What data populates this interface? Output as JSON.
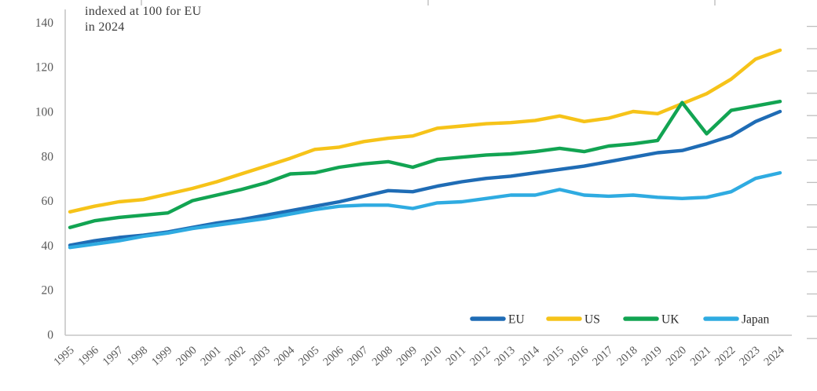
{
  "subtitle": {
    "line1": "indexed at 100 for EU",
    "line2": "in 2024"
  },
  "colors": {
    "background": "#ffffff",
    "axis_line": "#c6c6c6",
    "tick_dash": "#bfbfbf",
    "tick_label_text": "#595959",
    "subtitle_text": "#3b3b3b",
    "legend_text": "#2b2b2b"
  },
  "chart_data": {
    "type": "line",
    "title": "indexed at 100 for EU in 2024",
    "xlabel": "",
    "ylabel": "",
    "grid": false,
    "ylim": [
      0,
      140
    ],
    "yticks": [
      0,
      20,
      40,
      60,
      80,
      100,
      120,
      140
    ],
    "legend_position": "bottom-right-inside",
    "legend": [
      "EU",
      "US",
      "UK",
      "Japan"
    ],
    "x": [
      1995,
      1996,
      1997,
      1998,
      1999,
      2000,
      2001,
      2002,
      2003,
      2004,
      2005,
      2006,
      2007,
      2008,
      2009,
      2010,
      2011,
      2012,
      2013,
      2014,
      2015,
      2016,
      2017,
      2018,
      2019,
      2020,
      2021,
      2022,
      2023,
      2024
    ],
    "series": [
      {
        "name": "EU",
        "color": "#1f6cb5",
        "values": [
          40,
          42,
          43.5,
          44.5,
          46,
          48,
          50,
          51.5,
          53.5,
          55.5,
          57.5,
          59.5,
          62,
          64.5,
          64,
          66.5,
          68.5,
          70,
          71,
          72.5,
          74,
          75.5,
          77.5,
          79.5,
          81.5,
          82.5,
          85.5,
          89,
          95.5,
          100
        ]
      },
      {
        "name": "US",
        "color": "#f6c319",
        "values": [
          55,
          57.5,
          59.5,
          60.5,
          63,
          65.5,
          68.5,
          72,
          75.5,
          79,
          83,
          84,
          86.5,
          88,
          89,
          92.5,
          93.5,
          94.5,
          95,
          96,
          98,
          95.5,
          97,
          100,
          99,
          103.5,
          108,
          114.5,
          123.5,
          127.5
        ]
      },
      {
        "name": "UK",
        "color": "#12a452",
        "values": [
          48,
          51,
          52.5,
          53.5,
          54.5,
          60,
          62.5,
          65,
          68,
          72,
          72.5,
          75,
          76.5,
          77.5,
          75,
          78.5,
          79.5,
          80.5,
          81,
          82,
          83.5,
          82,
          84.5,
          85.5,
          87,
          104,
          90,
          100.5,
          102.5,
          104.5
        ]
      },
      {
        "name": "Japan",
        "color": "#2fabe1",
        "values": [
          39,
          40.5,
          42,
          44,
          45.5,
          47.5,
          49,
          50.5,
          52,
          54,
          56,
          57.5,
          58,
          58,
          56.5,
          59,
          59.5,
          61,
          62.5,
          62.5,
          65,
          62.5,
          62,
          62.5,
          61.5,
          61,
          61.5,
          64,
          70,
          72.5
        ]
      }
    ]
  }
}
